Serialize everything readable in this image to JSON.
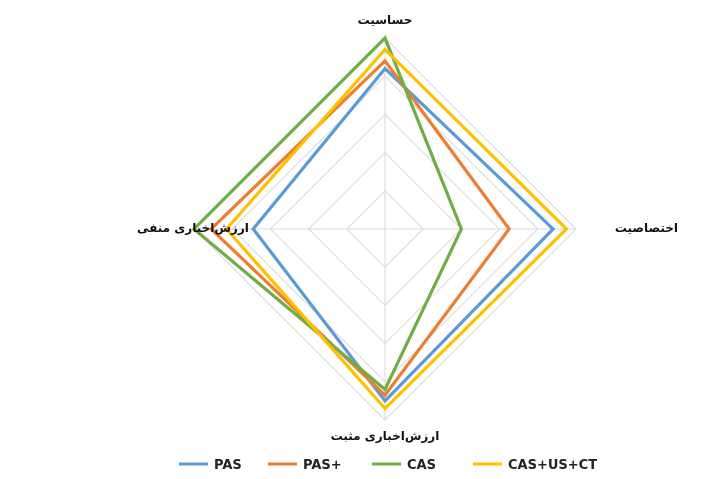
{
  "chart_data": {
    "type": "radar",
    "axes": [
      "حساسیت",
      "اختصاصیت",
      "ارزش‌اخباری مثبت",
      "ارزش‌اخباری منفی"
    ],
    "rmax": 100,
    "grid": true,
    "grid_rings": 5,
    "legend_position": "bottom",
    "series": [
      {
        "name": "PAS",
        "color": "#5b9bd5",
        "values": [
          84,
          88,
          90,
          69
        ]
      },
      {
        "name": "PAS+",
        "color": "#ed7d31",
        "values": [
          88,
          65,
          87,
          91
        ]
      },
      {
        "name": "CAS",
        "color": "#70ad47",
        "values": [
          100,
          40,
          84,
          100
        ]
      },
      {
        "name": "CAS+US+CT",
        "color": "#ffc000",
        "values": [
          94,
          95,
          94,
          83
        ]
      }
    ]
  }
}
